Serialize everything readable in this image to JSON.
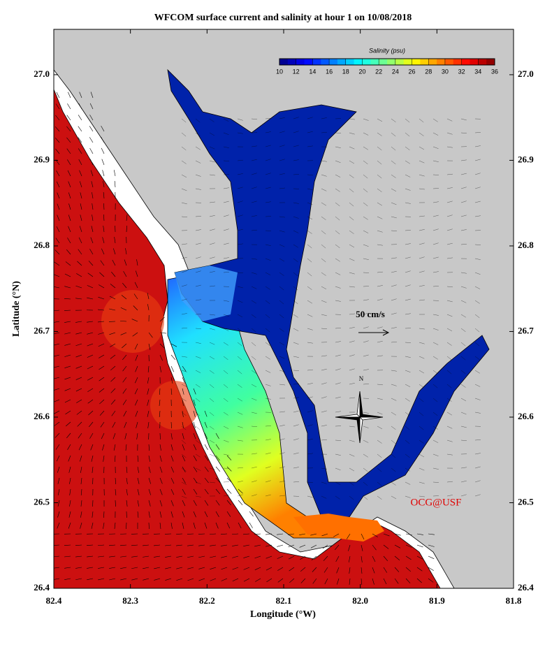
{
  "map": {
    "title": "WFCOM surface current and salinity at hour 1 on 10/08/2018",
    "x_label": "Longitude (°W)",
    "y_label": "Latitude (°N)",
    "xlim": [
      82.4,
      81.8
    ],
    "ylim": [
      26.4,
      27.053
    ],
    "xticks": [
      82.4,
      82.3,
      82.2,
      82.1,
      {
        "value": 82,
        "label": "82.0"
      },
      81.9,
      81.8
    ],
    "yticks": [
      26.4,
      26.5,
      26.6,
      26.7,
      26.8,
      26.9,
      {
        "value": 27,
        "label": "27.0"
      }
    ]
  },
  "colorbar": {
    "label": "Salinity (psu)",
    "range": [
      10,
      36
    ],
    "ticks": [
      10,
      12,
      14,
      16,
      18,
      20,
      22,
      24,
      26,
      28,
      30,
      32,
      34,
      36
    ]
  },
  "annotations": {
    "scale_label": "50 cm/s",
    "north": "N",
    "credit": "OCG@USF"
  }
}
